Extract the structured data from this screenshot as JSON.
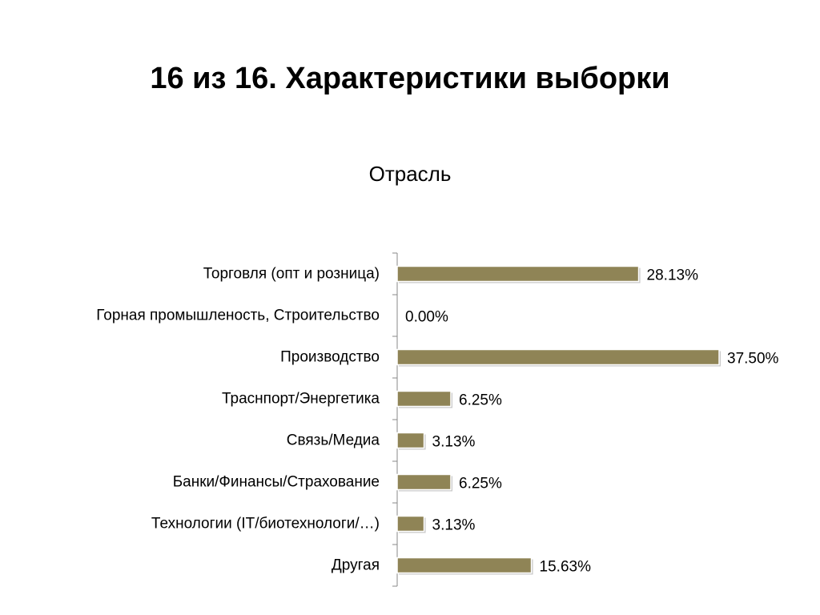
{
  "slide": {
    "title": "16 из 16. Характеристики выборки"
  },
  "colors": {
    "bar_fill": "#8F8456",
    "bar_shadow": "#c8c8c8",
    "axis": "#888888",
    "text": "#000000"
  },
  "chart_data": {
    "type": "bar",
    "orientation": "horizontal",
    "title": "Отрасль",
    "categories": [
      "Торговля (опт и розница)",
      "Горная промышленость, Строительство",
      "Производство",
      "Траснпорт/Энергетика",
      "Связь/Медиа",
      "Банки/Финансы/Страхование",
      "Технологии (IT/биотехнологи/…)",
      "Другая"
    ],
    "values": [
      28.13,
      0.0,
      37.5,
      6.25,
      3.13,
      6.25,
      3.13,
      15.63
    ],
    "value_labels": [
      "28.13%",
      "0.00%",
      "37.50%",
      "6.25%",
      "3.13%",
      "6.25%",
      "3.13%",
      "15.63%"
    ],
    "unit": "%",
    "xlim": [
      0,
      37.5
    ],
    "grid": false,
    "legend": "none"
  }
}
